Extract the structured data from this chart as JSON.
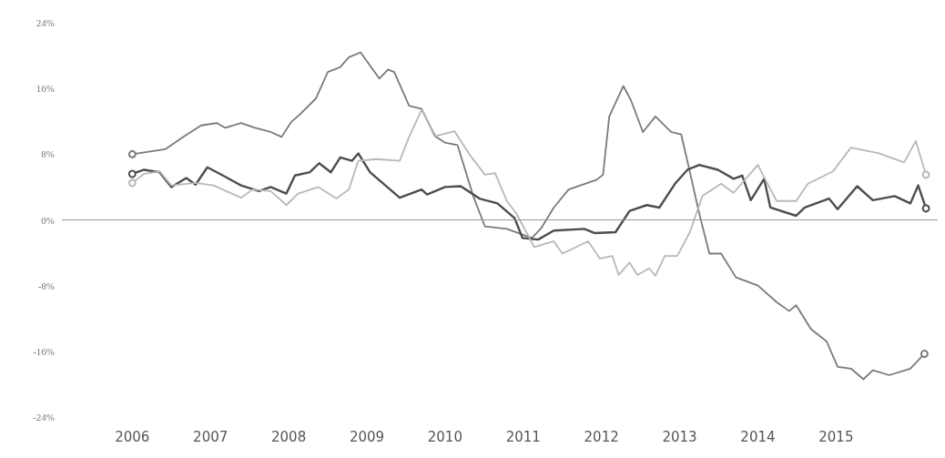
{
  "chart_data": {
    "type": "line",
    "xlim": [
      2005.1,
      2016.3
    ],
    "xticks": [
      2006,
      2007,
      2008,
      2009,
      2010,
      2011,
      2012,
      2013,
      2014,
      2015
    ],
    "ylim": [
      -24,
      24
    ],
    "yticks": [
      {
        "value": -24,
        "label": "-24%"
      },
      {
        "value": -16,
        "label": "-16%"
      },
      {
        "value": -8,
        "label": "-8%"
      },
      {
        "value": 0,
        "label": "0%"
      },
      {
        "value": 8,
        "label": "8%"
      },
      {
        "value": 16,
        "label": "16%"
      },
      {
        "value": 24,
        "label": "24%"
      }
    ],
    "line_style": "solid",
    "ref_lines": [
      {
        "axis": "y",
        "value": 0,
        "color": "#9a9a9a"
      }
    ],
    "series": [
      {
        "color": "#7a7a7a",
        "x": [
          2006.0,
          2006.42,
          2006.65,
          2006.88,
          2007.08,
          2007.19,
          2007.39,
          2007.57,
          2007.77,
          2007.91,
          2008.03,
          2008.15,
          2008.35,
          2008.5,
          2008.66,
          2008.77,
          2008.92,
          2009.04,
          2009.16,
          2009.27,
          2009.35,
          2009.54,
          2009.7,
          2009.87,
          2010.0,
          2010.16,
          2010.36,
          2010.51,
          2010.79,
          2011.11,
          2011.23,
          2011.39,
          2011.58,
          2011.94,
          2012.02,
          2012.1,
          2012.28,
          2012.38,
          2012.53,
          2012.69,
          2012.89,
          2013.02,
          2013.11,
          2013.25,
          2013.38,
          2013.53,
          2013.72,
          2014.0,
          2014.24,
          2014.4,
          2014.49,
          2014.68,
          2014.88,
          2015.02,
          2015.19,
          2015.35,
          2015.47,
          2015.68,
          2015.95,
          2016.13
        ],
        "values": [
          8.0,
          8.6,
          10.1,
          11.5,
          11.8,
          11.2,
          11.8,
          11.2,
          10.7,
          10.1,
          11.9,
          12.9,
          14.8,
          18.0,
          18.6,
          19.8,
          20.4,
          18.8,
          17.2,
          18.3,
          18.0,
          13.9,
          13.5,
          10.2,
          9.4,
          9.1,
          2.9,
          -0.8,
          -1.1,
          -2.2,
          -1.0,
          1.5,
          3.7,
          4.9,
          5.5,
          12.6,
          16.3,
          14.5,
          10.7,
          12.6,
          10.7,
          10.4,
          6.7,
          0.8,
          -4.1,
          -4.1,
          -7.0,
          -8.0,
          -10.0,
          -11.1,
          -10.4,
          -13.3,
          -14.8,
          -17.9,
          -18.1,
          -19.4,
          -18.3,
          -18.9,
          -18.1,
          -16.3
        ]
      },
      {
        "color": "#4d4d4d",
        "x": [
          2006.0,
          2006.15,
          2006.35,
          2006.5,
          2006.69,
          2006.81,
          2006.96,
          2007.16,
          2007.39,
          2007.62,
          2007.77,
          2007.97,
          2008.08,
          2008.27,
          2008.39,
          2008.54,
          2008.66,
          2008.81,
          2008.89,
          2009.04,
          2009.42,
          2009.7,
          2009.77,
          2010.0,
          2010.2,
          2010.44,
          2010.67,
          2010.89,
          2010.99,
          2011.19,
          2011.39,
          2011.78,
          2011.91,
          2012.18,
          2012.36,
          2012.58,
          2012.74,
          2012.94,
          2013.1,
          2013.25,
          2013.49,
          2013.69,
          2013.8,
          2013.91,
          2014.08,
          2014.16,
          2014.49,
          2014.6,
          2014.91,
          2015.02,
          2015.27,
          2015.47,
          2015.75,
          2015.95,
          2016.05,
          2016.15
        ],
        "values": [
          5.6,
          6.1,
          5.8,
          4.0,
          5.1,
          4.3,
          6.4,
          5.4,
          4.2,
          3.5,
          4.0,
          3.2,
          5.4,
          5.8,
          6.9,
          5.8,
          7.6,
          7.2,
          8.1,
          5.8,
          2.7,
          3.7,
          3.1,
          4.0,
          4.1,
          2.6,
          2.0,
          0.2,
          -2.2,
          -2.4,
          -1.3,
          -1.1,
          -1.6,
          -1.5,
          1.1,
          1.8,
          1.5,
          4.4,
          6.1,
          6.7,
          6.1,
          5.0,
          5.4,
          2.4,
          5.0,
          1.5,
          0.5,
          1.5,
          2.6,
          1.3,
          4.1,
          2.4,
          2.9,
          2.0,
          4.2,
          1.4
        ]
      },
      {
        "color": "#b8b8b8",
        "x": [
          2006.0,
          2006.15,
          2006.35,
          2006.5,
          2006.81,
          2007.04,
          2007.39,
          2007.54,
          2007.77,
          2007.97,
          2008.12,
          2008.38,
          2008.61,
          2008.77,
          2008.89,
          2009.12,
          2009.42,
          2009.54,
          2009.7,
          2009.88,
          2010.12,
          2010.31,
          2010.51,
          2010.64,
          2010.79,
          2010.91,
          2011.14,
          2011.39,
          2011.5,
          2011.83,
          2011.98,
          2012.14,
          2012.22,
          2012.36,
          2012.46,
          2012.61,
          2012.69,
          2012.81,
          2012.97,
          2013.13,
          2013.29,
          2013.53,
          2013.69,
          2014.0,
          2014.08,
          2014.24,
          2014.49,
          2014.64,
          2014.96,
          2015.19,
          2015.55,
          2015.87,
          2016.02,
          2016.15
        ],
        "values": [
          4.5,
          5.6,
          5.9,
          4.2,
          4.5,
          4.2,
          2.7,
          3.7,
          3.5,
          1.8,
          3.2,
          4.0,
          2.6,
          3.7,
          7.2,
          7.4,
          7.2,
          10.1,
          13.4,
          10.2,
          10.8,
          8.0,
          5.5,
          5.7,
          2.3,
          0.8,
          -3.3,
          -2.6,
          -4.1,
          -2.6,
          -4.7,
          -4.4,
          -6.7,
          -5.2,
          -6.7,
          -5.9,
          -6.8,
          -4.4,
          -4.4,
          -1.5,
          2.9,
          4.4,
          3.3,
          6.7,
          5.2,
          2.3,
          2.3,
          4.4,
          5.9,
          8.8,
          8.1,
          7.0,
          9.6,
          5.5
        ]
      }
    ]
  }
}
